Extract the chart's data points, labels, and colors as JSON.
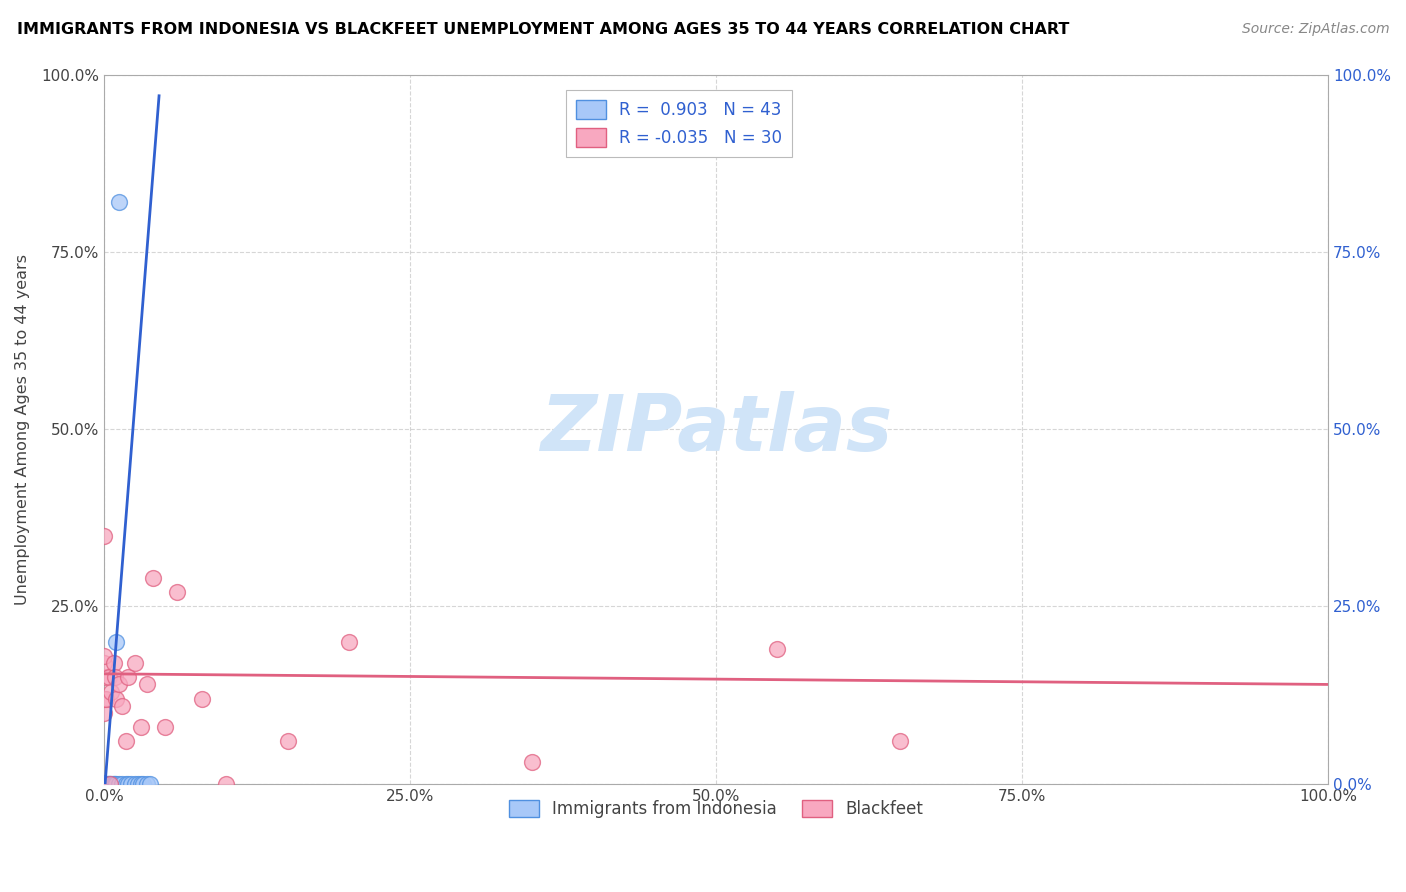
{
  "title": "IMMIGRANTS FROM INDONESIA VS BLACKFEET UNEMPLOYMENT AMONG AGES 35 TO 44 YEARS CORRELATION CHART",
  "source": "Source: ZipAtlas.com",
  "ylabel": "Unemployment Among Ages 35 to 44 years",
  "xlim": [
    0,
    1.0
  ],
  "ylim": [
    0,
    1.0
  ],
  "xtick_vals": [
    0.0,
    0.25,
    0.5,
    0.75,
    1.0
  ],
  "xtick_labels": [
    "0.0%",
    "25.0%",
    "50.0%",
    "75.0%",
    "100.0%"
  ],
  "ytick_vals": [
    0.0,
    0.25,
    0.5,
    0.75,
    1.0
  ],
  "ytick_labels_left": [
    "",
    "25.0%",
    "50.0%",
    "75.0%",
    "100.0%"
  ],
  "ytick_labels_right": [
    "0.0%",
    "25.0%",
    "50.0%",
    "75.0%",
    "100.0%"
  ],
  "blue_R": 0.903,
  "blue_N": 43,
  "pink_R": -0.035,
  "pink_N": 30,
  "blue_color": "#a8c8f8",
  "pink_color": "#f8a8c0",
  "blue_edge_color": "#5090e0",
  "pink_edge_color": "#e06080",
  "blue_line_color": "#3060d0",
  "pink_line_color": "#e06080",
  "legend_text_color": "#3060d0",
  "watermark": "ZIPatlas",
  "watermark_color": "#d0e4f8",
  "blue_scatter_x": [
    0.0,
    0.0,
    0.0,
    0.0,
    0.0,
    0.0,
    0.0,
    0.0,
    0.0,
    0.0,
    0.0,
    0.0,
    0.0,
    0.0,
    0.0,
    0.0,
    0.0,
    0.0,
    0.0,
    0.002,
    0.002,
    0.003,
    0.003,
    0.004,
    0.005,
    0.006,
    0.007,
    0.008,
    0.009,
    0.01,
    0.012,
    0.015,
    0.018,
    0.02,
    0.022,
    0.025,
    0.028,
    0.03,
    0.032,
    0.035,
    0.038,
    0.01,
    0.012
  ],
  "blue_scatter_y": [
    0.0,
    0.0,
    0.0,
    0.0,
    0.0,
    0.0,
    0.0,
    0.0,
    0.0,
    0.0,
    0.0,
    0.0,
    0.0,
    0.0,
    0.0,
    0.0,
    0.0,
    0.0,
    0.0,
    0.0,
    0.0,
    0.0,
    0.0,
    0.0,
    0.0,
    0.0,
    0.0,
    0.0,
    0.0,
    0.0,
    0.0,
    0.0,
    0.0,
    0.0,
    0.0,
    0.0,
    0.0,
    0.0,
    0.0,
    0.0,
    0.0,
    0.2,
    0.82
  ],
  "pink_scatter_x": [
    0.0,
    0.0,
    0.0,
    0.0,
    0.0,
    0.0,
    0.002,
    0.004,
    0.005,
    0.006,
    0.008,
    0.009,
    0.01,
    0.012,
    0.015,
    0.018,
    0.02,
    0.025,
    0.03,
    0.035,
    0.04,
    0.05,
    0.06,
    0.08,
    0.1,
    0.15,
    0.2,
    0.35,
    0.55,
    0.65
  ],
  "pink_scatter_y": [
    0.1,
    0.12,
    0.15,
    0.17,
    0.35,
    0.18,
    0.12,
    0.15,
    0.0,
    0.13,
    0.17,
    0.15,
    0.12,
    0.14,
    0.11,
    0.06,
    0.15,
    0.17,
    0.08,
    0.14,
    0.29,
    0.08,
    0.27,
    0.12,
    0.0,
    0.06,
    0.2,
    0.03,
    0.19,
    0.06
  ],
  "blue_line_x": [
    0.0,
    0.045
  ],
  "blue_line_slope": 22.0,
  "blue_line_intercept": -0.02,
  "pink_line_x0": 0.0,
  "pink_line_x1": 1.0,
  "pink_line_y0": 0.155,
  "pink_line_y1": 0.14
}
